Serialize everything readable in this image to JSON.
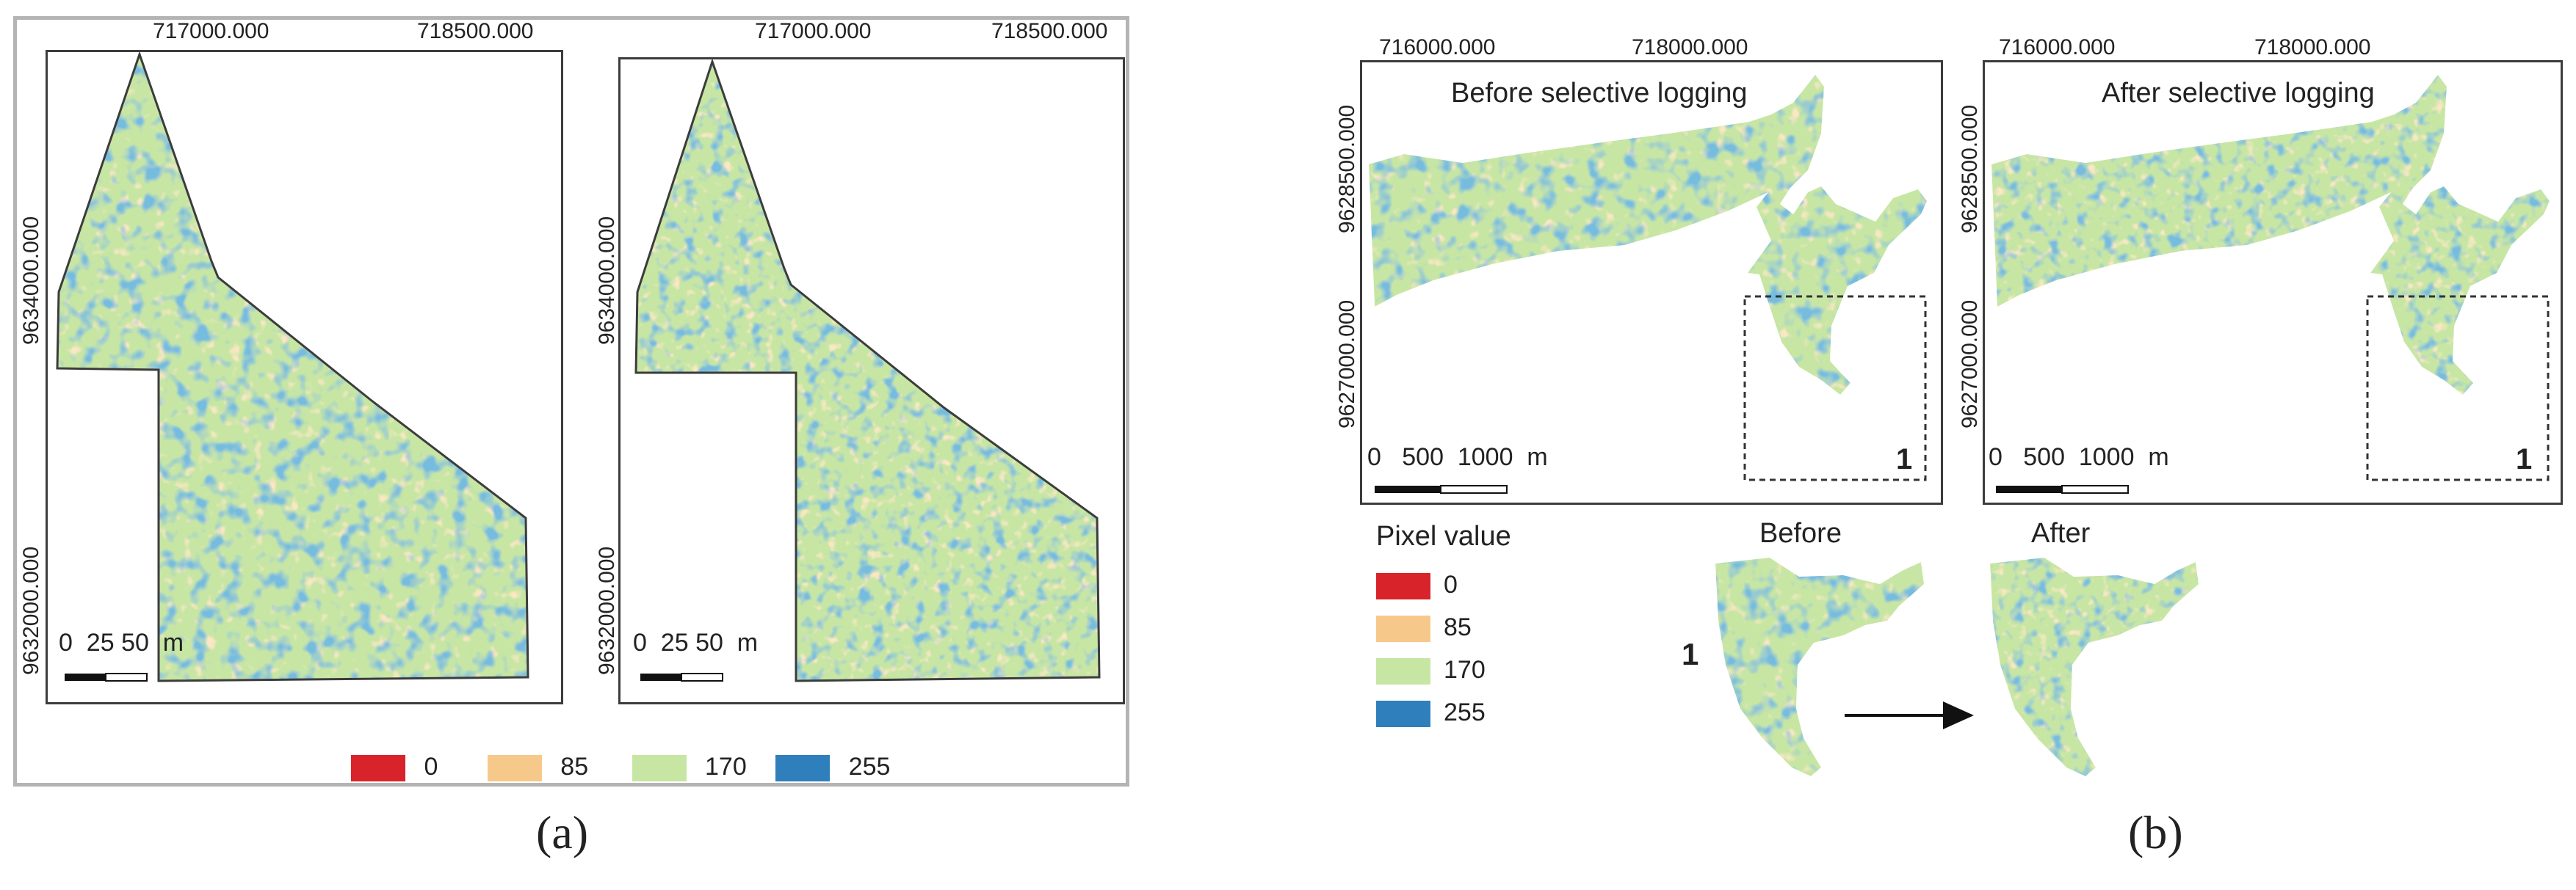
{
  "colors": {
    "c0": "#d8232a",
    "c85": "#f6c98a",
    "c170": "#c7e6a4",
    "c255": "#2f7fbd",
    "border": "#3c3c3c"
  },
  "panel_a": {
    "coords_top": [
      "717000.000",
      "718500.000"
    ],
    "coords_left": [
      "9634000.000",
      "9632000.000"
    ],
    "scale": "0  25 50  m",
    "legend": [
      "0",
      "85",
      "170",
      "255"
    ],
    "caption": "(a)"
  },
  "panel_b": {
    "coords_top": [
      "716000.000",
      "718000.000"
    ],
    "coords_left": [
      "9628500.000",
      "9627000.000"
    ],
    "title_before": "Before selective logging",
    "title_after": "After selective logging",
    "scale": "0   500  1000  m",
    "inset_number": "1",
    "legend_title": "Pixel value",
    "legend": [
      "0",
      "85",
      "170",
      "255"
    ],
    "label_before": "Before",
    "label_after": "After",
    "inset_label": "1",
    "caption": "(b)"
  }
}
